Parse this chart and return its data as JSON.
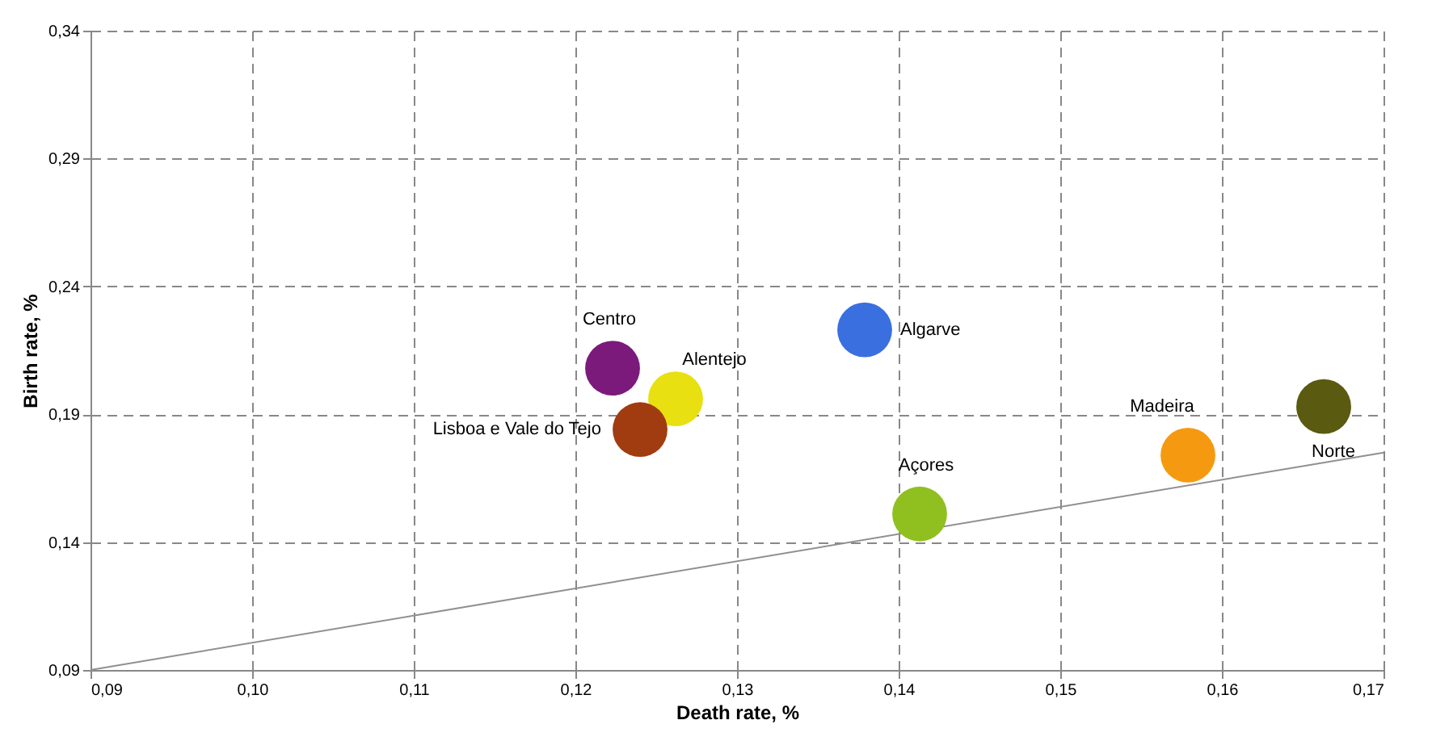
{
  "chart_data": {
    "type": "scatter",
    "xlabel": "Death rate, %",
    "ylabel": "Birth rate, %",
    "xlim": [
      0.09,
      0.17
    ],
    "ylim": [
      0.09,
      0.34
    ],
    "xticks": [
      {
        "value": 0.09,
        "label": "0,09"
      },
      {
        "value": 0.1,
        "label": "0,10"
      },
      {
        "value": 0.11,
        "label": "0,11"
      },
      {
        "value": 0.12,
        "label": "0,12"
      },
      {
        "value": 0.13,
        "label": "0,13"
      },
      {
        "value": 0.14,
        "label": "0,14"
      },
      {
        "value": 0.15,
        "label": "0,15"
      },
      {
        "value": 0.16,
        "label": "0,16"
      },
      {
        "value": 0.17,
        "label": "0,17"
      }
    ],
    "yticks": [
      {
        "value": 0.09,
        "label": "0,09"
      },
      {
        "value": 0.14,
        "label": "0,14"
      },
      {
        "value": 0.19,
        "label": "0,19"
      },
      {
        "value": 0.24,
        "label": "0,24"
      },
      {
        "value": 0.29,
        "label": "0,29"
      },
      {
        "value": 0.34,
        "label": "0,34"
      }
    ],
    "grid": true,
    "marker": "circle",
    "series": [
      {
        "name": "Centro",
        "color": "#7b1a7b",
        "x": [
          0.1223
        ],
        "values": [
          0.208
        ]
      },
      {
        "name": "Alentejo",
        "color": "#e8e010",
        "x": [
          0.1262
        ],
        "values": [
          0.196
        ]
      },
      {
        "name": "Lisboa e Vale do Tejo",
        "color": "#a03c10",
        "x": [
          0.124
        ],
        "values": [
          0.184
        ]
      },
      {
        "name": "Algarve",
        "color": "#3a6fe0",
        "x": [
          0.1379
        ],
        "values": [
          0.223
        ]
      },
      {
        "name": "Açores",
        "color": "#90c020",
        "x": [
          0.1413
        ],
        "values": [
          0.151
        ]
      },
      {
        "name": "Madeira",
        "color": "#f59a10",
        "x": [
          0.1579
        ],
        "values": [
          0.174
        ]
      },
      {
        "name": "Norte",
        "color": "#5a5a10",
        "x": [
          0.1663
        ],
        "values": [
          0.193
        ]
      },
      {
        "type": "line",
        "marker": "none",
        "color": "#909090",
        "x": [
          0.09,
          0.17
        ],
        "values": [
          0.09,
          0.175
        ]
      }
    ]
  }
}
